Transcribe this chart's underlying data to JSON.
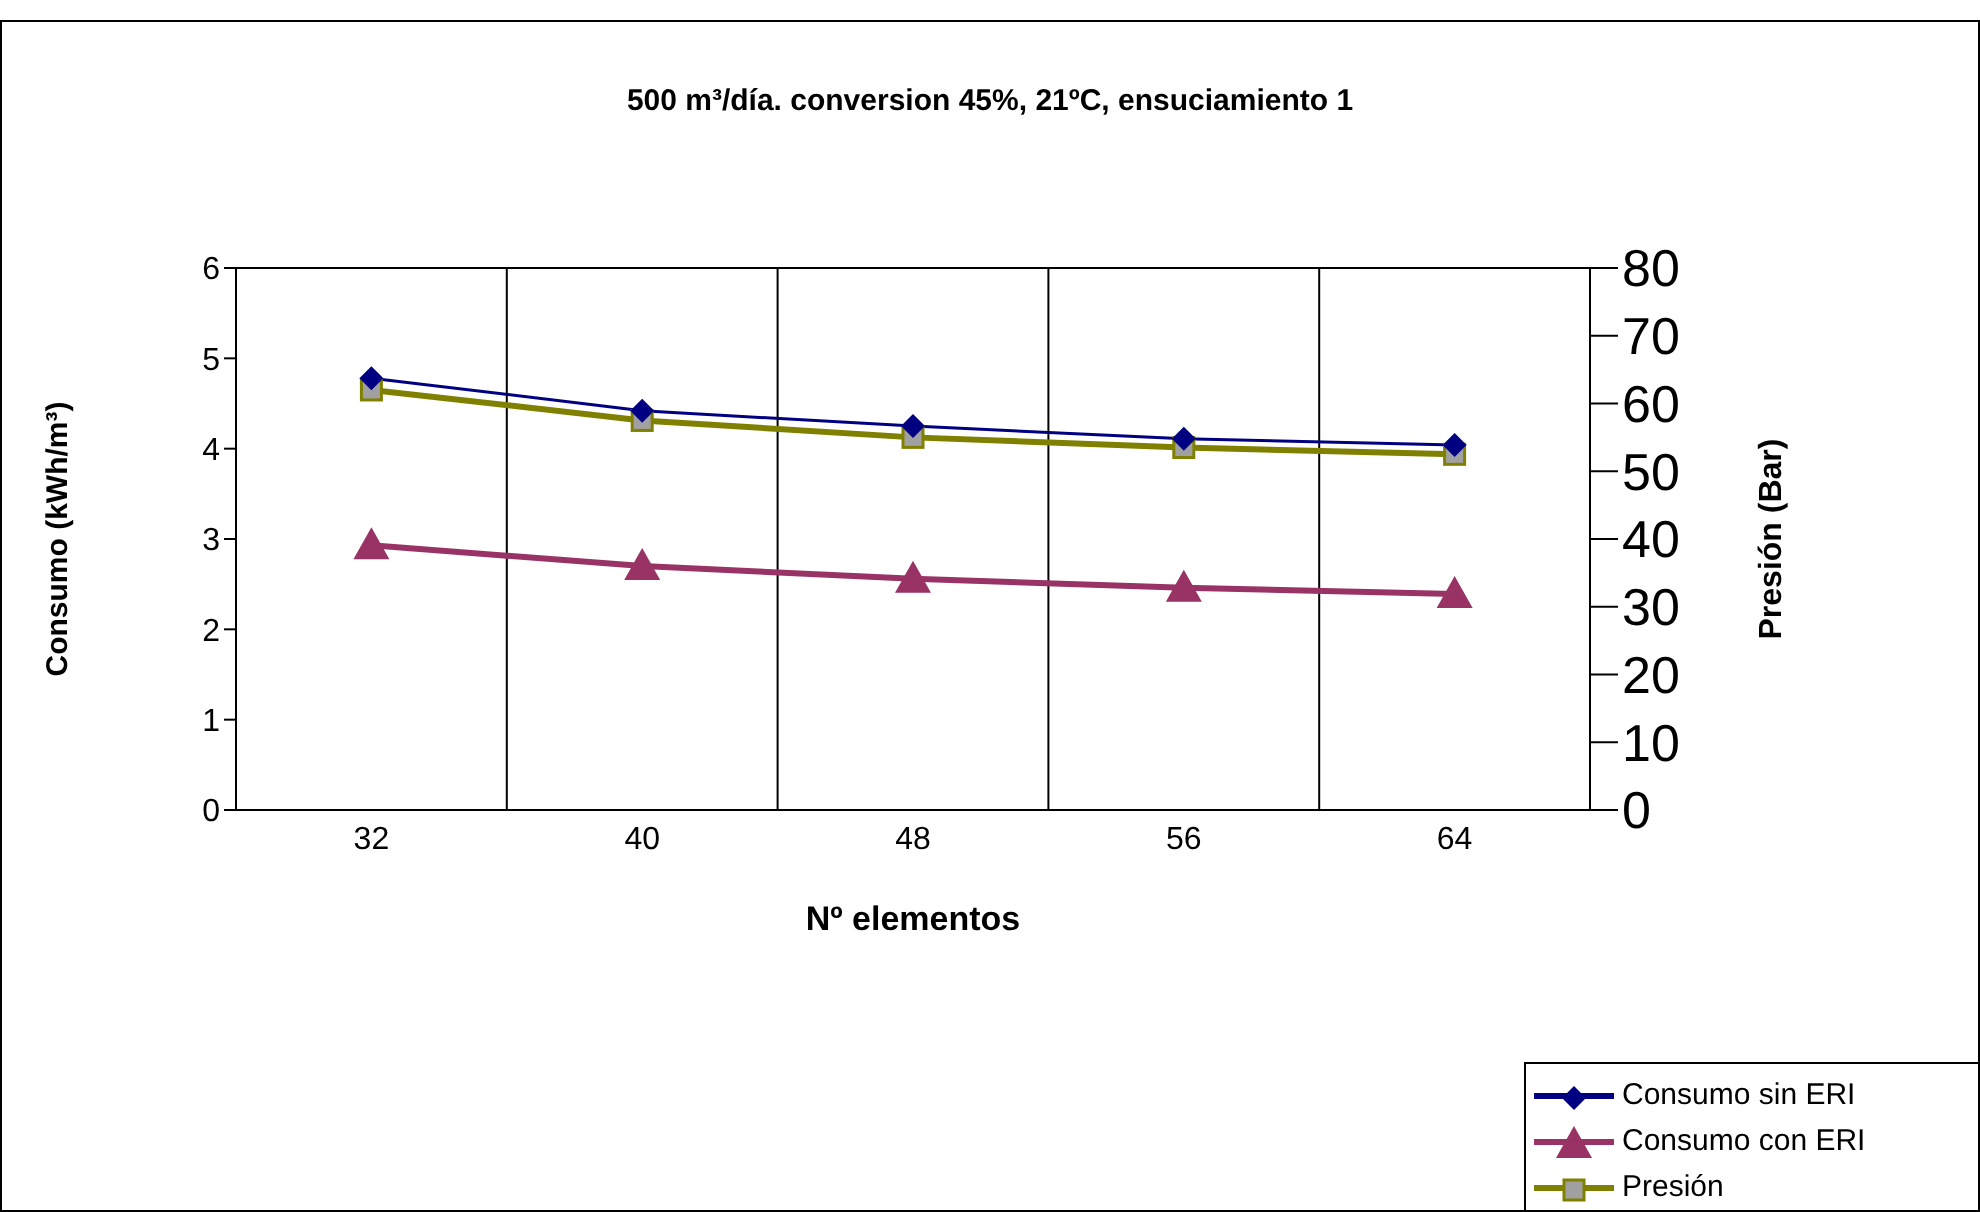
{
  "chart_data": {
    "type": "line",
    "title": "500 m³/día. conversion 45%, 21ºC, ensuciamiento 1",
    "xlabel": "Nº elementos",
    "ylabel": "Consumo (kWh/m³)",
    "y2label": "Presión (Bar)",
    "categories": [
      "32",
      "40",
      "48",
      "56",
      "64"
    ],
    "series": [
      {
        "name": "Consumo sin ERI",
        "color": "#000080",
        "marker": "diamond",
        "values": [
          4.78,
          4.42,
          4.25,
          4.11,
          4.04
        ]
      },
      {
        "name": "Consumo con ERI",
        "color": "#993366",
        "marker": "triangle",
        "values": [
          2.93,
          2.7,
          2.56,
          2.46,
          2.39
        ]
      },
      {
        "name": "Presión",
        "color": "#808000",
        "marker": "square",
        "axis": "y2",
        "values": [
          62,
          57.5,
          55,
          53.5,
          52.5
        ]
      }
    ],
    "ylim": [
      0,
      6
    ],
    "yticks": [
      0,
      1,
      2,
      3,
      4,
      5,
      6
    ],
    "y2lim": [
      0,
      80
    ],
    "y2ticks": [
      0,
      10,
      20,
      30,
      40,
      50,
      60,
      70,
      80
    ],
    "grid": true,
    "legend": "bottom right"
  }
}
